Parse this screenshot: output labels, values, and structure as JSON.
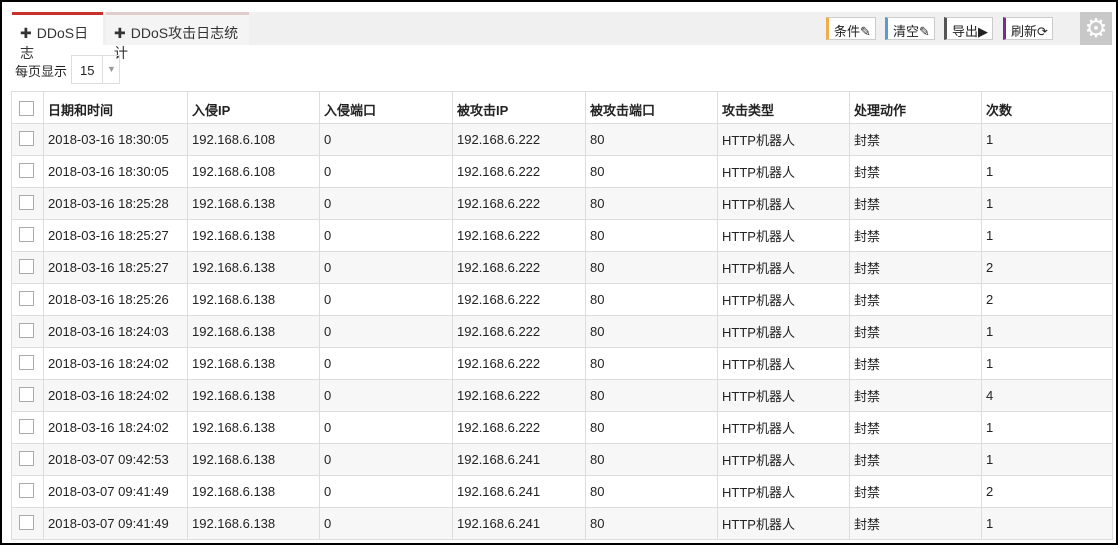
{
  "tabs": [
    {
      "label": "DDoS日志",
      "active": true
    },
    {
      "label": "DDoS攻击日志统计",
      "active": false
    }
  ],
  "toolbar": {
    "condition": "条件",
    "clear": "清空",
    "export": "导出",
    "refresh": "刷新",
    "condition_color": "#f0ad4e",
    "clear_color": "#5b9bd5",
    "export_color": "#555555",
    "refresh_color": "#7b2d8e"
  },
  "page_size": {
    "label": "每页显示",
    "value": "15"
  },
  "table": {
    "headers": [
      "日期和时间",
      "入侵IP",
      "入侵端口",
      "被攻击IP",
      "被攻击端口",
      "攻击类型",
      "处理动作",
      "次数"
    ],
    "rows": [
      [
        "2018-03-16 18:30:05",
        "192.168.6.108",
        "0",
        "192.168.6.222",
        "80",
        "HTTP机器人",
        "封禁",
        "1"
      ],
      [
        "2018-03-16 18:30:05",
        "192.168.6.108",
        "0",
        "192.168.6.222",
        "80",
        "HTTP机器人",
        "封禁",
        "1"
      ],
      [
        "2018-03-16 18:25:28",
        "192.168.6.138",
        "0",
        "192.168.6.222",
        "80",
        "HTTP机器人",
        "封禁",
        "1"
      ],
      [
        "2018-03-16 18:25:27",
        "192.168.6.138",
        "0",
        "192.168.6.222",
        "80",
        "HTTP机器人",
        "封禁",
        "1"
      ],
      [
        "2018-03-16 18:25:27",
        "192.168.6.138",
        "0",
        "192.168.6.222",
        "80",
        "HTTP机器人",
        "封禁",
        "2"
      ],
      [
        "2018-03-16 18:25:26",
        "192.168.6.138",
        "0",
        "192.168.6.222",
        "80",
        "HTTP机器人",
        "封禁",
        "2"
      ],
      [
        "2018-03-16 18:24:03",
        "192.168.6.138",
        "0",
        "192.168.6.222",
        "80",
        "HTTP机器人",
        "封禁",
        "1"
      ],
      [
        "2018-03-16 18:24:02",
        "192.168.6.138",
        "0",
        "192.168.6.222",
        "80",
        "HTTP机器人",
        "封禁",
        "1"
      ],
      [
        "2018-03-16 18:24:02",
        "192.168.6.138",
        "0",
        "192.168.6.222",
        "80",
        "HTTP机器人",
        "封禁",
        "4"
      ],
      [
        "2018-03-16 18:24:02",
        "192.168.6.138",
        "0",
        "192.168.6.222",
        "80",
        "HTTP机器人",
        "封禁",
        "1"
      ],
      [
        "2018-03-07 09:42:53",
        "192.168.6.138",
        "0",
        "192.168.6.241",
        "80",
        "HTTP机器人",
        "封禁",
        "1"
      ],
      [
        "2018-03-07 09:41:49",
        "192.168.6.138",
        "0",
        "192.168.6.241",
        "80",
        "HTTP机器人",
        "封禁",
        "2"
      ],
      [
        "2018-03-07 09:41:49",
        "192.168.6.138",
        "0",
        "192.168.6.241",
        "80",
        "HTTP机器人",
        "封禁",
        "1"
      ]
    ]
  }
}
